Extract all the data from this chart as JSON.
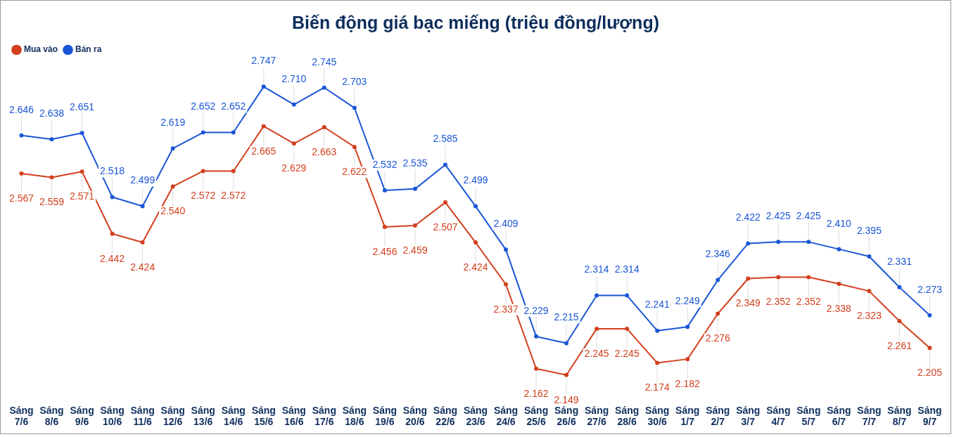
{
  "chart_data": {
    "type": "line",
    "title": "Biến động giá bạc miếng (triệu đồng/lượng)",
    "categories": [
      "Sáng 7/6",
      "Sáng 8/6",
      "Sáng 9/6",
      "Sáng 10/6",
      "Sáng 11/6",
      "Sáng 12/6",
      "Sáng 13/6",
      "Sáng 14/6",
      "Sáng 15/6",
      "Sáng 16/6",
      "Sáng 17/6",
      "Sáng 18/6",
      "Sáng 19/6",
      "Sáng 20/6",
      "Sáng 22/6",
      "Sáng 23/6",
      "Sáng 24/6",
      "Sáng 25/6",
      "Sáng 26/6",
      "Sáng 27/6",
      "Sáng 28/6",
      "Sáng 30/6",
      "Sáng 1/7",
      "Sáng 2/7",
      "Sáng 3/7",
      "Sáng 4/7",
      "Sáng 5/7",
      "Sáng 6/7",
      "Sáng 7/7",
      "Sáng 8/7",
      "Sáng 9/7"
    ],
    "series": [
      {
        "name": "Mua vào",
        "color": "#d2401e",
        "values": [
          2.567,
          2.559,
          2.571,
          2.442,
          2.424,
          2.54,
          2.572,
          2.572,
          2.665,
          2.629,
          2.663,
          2.622,
          2.456,
          2.459,
          2.507,
          2.424,
          2.337,
          2.162,
          2.149,
          2.245,
          2.245,
          2.174,
          2.182,
          2.276,
          2.349,
          2.352,
          2.352,
          2.338,
          2.323,
          2.261,
          2.205
        ],
        "value_labels": [
          "2.567",
          "2.559",
          "2.571",
          "2.442",
          "2.424",
          "2.540",
          "2.572",
          "2.572",
          "2.665",
          "2.629",
          "2.663",
          "2.622",
          "2.456",
          "2.459",
          "2.507",
          "2.424",
          "2.337",
          "2.162",
          "2.149",
          "2.245",
          "2.245",
          "2.174",
          "2.182",
          "2.276",
          "2.349",
          "2.352",
          "2.352",
          "2.338",
          "2.323",
          "2.261",
          "2.205"
        ]
      },
      {
        "name": "Bán ra",
        "color": "#1a56d6",
        "values": [
          2.646,
          2.638,
          2.651,
          2.518,
          2.499,
          2.619,
          2.652,
          2.652,
          2.747,
          2.71,
          2.745,
          2.703,
          2.532,
          2.535,
          2.585,
          2.499,
          2.409,
          2.229,
          2.215,
          2.314,
          2.314,
          2.241,
          2.249,
          2.346,
          2.422,
          2.425,
          2.425,
          2.41,
          2.395,
          2.331,
          2.273
        ],
        "value_labels": [
          "2.646",
          "2.638",
          "2.651",
          "2.518",
          "2.499",
          "2.619",
          "2.652",
          "2.652",
          "2.747",
          "2.710",
          "2.745",
          "2.703",
          "2.532",
          "2.535",
          "2.585",
          "2.499",
          "2.409",
          "2.229",
          "2.215",
          "2.314",
          "2.314",
          "2.241",
          "2.249",
          "2.346",
          "2.422",
          "2.425",
          "2.425",
          "2.410",
          "2.395",
          "2.331",
          "2.273"
        ]
      }
    ],
    "legend": "top left",
    "marker": "circle",
    "line_style": "solid",
    "grid": false
  }
}
